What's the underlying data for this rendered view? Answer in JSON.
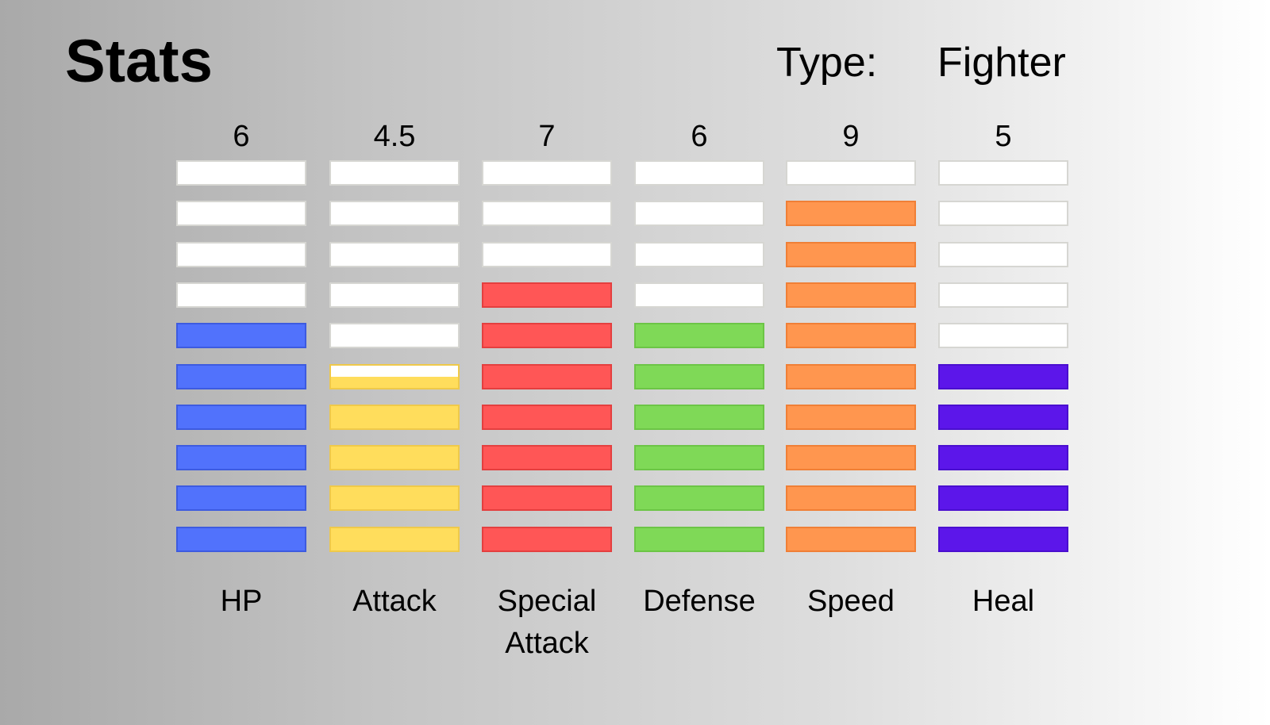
{
  "header": {
    "title": "Stats",
    "type_label": "Type:",
    "type_value": "Fighter"
  },
  "max_segments": 10,
  "stats": [
    {
      "name": "HP",
      "value_text": "6",
      "value": 6,
      "color": "#5172fc",
      "border": "#3d5be0"
    },
    {
      "name": "Attack",
      "value_text": "4.5",
      "value": 4.5,
      "color": "#ffdd5c",
      "border": "#efc94a"
    },
    {
      "name": "Special\nAttack",
      "value_text": "7",
      "value": 7,
      "color": "#ff5656",
      "border": "#e43f3f"
    },
    {
      "name": "Defense",
      "value_text": "6",
      "value": 6,
      "color": "#7fd957",
      "border": "#6cc546"
    },
    {
      "name": "Speed",
      "value_text": "9",
      "value": 9,
      "color": "#ff964f",
      "border": "#f07f36"
    },
    {
      "name": "Heal",
      "value_text": "5",
      "value": 5,
      "color": "#5c16ea",
      "border": "#4a0fcf"
    }
  ]
}
